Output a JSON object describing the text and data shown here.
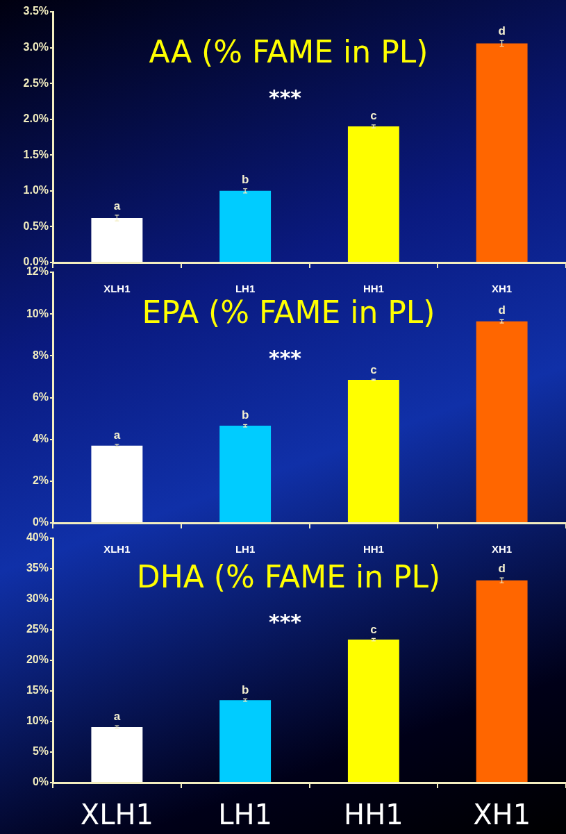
{
  "chart_data": [
    {
      "type": "bar",
      "title": "AA (% FAME in PL)",
      "categories": [
        "XLH1",
        "LH1",
        "HH1",
        "XH1"
      ],
      "values": [
        0.62,
        1.0,
        1.9,
        3.06
      ],
      "errors": [
        0.04,
        0.03,
        0.02,
        0.04
      ],
      "colors": [
        "#ffffff",
        "#00ccff",
        "#ffff00",
        "#ff6600"
      ],
      "ylim": [
        0,
        3.5
      ],
      "yticks": [
        {
          "value": 0,
          "label": "0.0%"
        },
        {
          "value": 0.5,
          "label": "0.5%"
        },
        {
          "value": 1,
          "label": "1.0%"
        },
        {
          "value": 1.5,
          "label": "1.5%"
        },
        {
          "value": 2,
          "label": "2.0%"
        },
        {
          "value": 2.5,
          "label": "2.5%"
        },
        {
          "value": 3,
          "label": "3.0%"
        },
        {
          "value": 3.5,
          "label": "3.5%"
        }
      ],
      "annotations": [
        {
          "text": "a",
          "x": "XLH1",
          "y": 0.62
        },
        {
          "text": "b",
          "x": "LH1",
          "y": 1.0
        },
        {
          "text": "c",
          "x": "HH1",
          "y": 1.9
        },
        {
          "text": "d",
          "x": "XH1",
          "y": 3.06
        },
        "***"
      ]
    },
    {
      "type": "bar",
      "title": "EPA (% FAME in PL)",
      "categories": [
        "XLH1",
        "LH1",
        "HH1",
        "XH1"
      ],
      "values": [
        3.7,
        4.65,
        6.85,
        9.65
      ],
      "errors": [
        0.06,
        0.06,
        0.03,
        0.08
      ],
      "colors": [
        "#ffffff",
        "#00ccff",
        "#ffff00",
        "#ff6600"
      ],
      "ylim": [
        0,
        12
      ],
      "yticks": [
        {
          "value": 0,
          "label": "0%"
        },
        {
          "value": 2,
          "label": "2%"
        },
        {
          "value": 4,
          "label": "4%"
        },
        {
          "value": 6,
          "label": "6%"
        },
        {
          "value": 8,
          "label": "8%"
        },
        {
          "value": 10,
          "label": "10%"
        },
        {
          "value": 12,
          "label": "12%"
        }
      ],
      "annotations": [
        {
          "text": "a",
          "x": "XLH1",
          "y": 3.7
        },
        {
          "text": "b",
          "x": "LH1",
          "y": 4.65
        },
        {
          "text": "c",
          "x": "HH1",
          "y": 6.85
        },
        {
          "text": "d",
          "x": "XH1",
          "y": 9.65
        },
        "***"
      ]
    },
    {
      "type": "bar",
      "title": "DHA (% FAME in PL)",
      "categories": [
        "XLH1",
        "LH1",
        "HH1",
        "XH1"
      ],
      "values": [
        9.1,
        13.5,
        23.4,
        33.1
      ],
      "errors": [
        0.2,
        0.2,
        0.2,
        0.4
      ],
      "colors": [
        "#ffffff",
        "#00ccff",
        "#ffff00",
        "#ff6600"
      ],
      "ylim": [
        0,
        40
      ],
      "yticks": [
        {
          "value": 0,
          "label": "0%"
        },
        {
          "value": 5,
          "label": "5%"
        },
        {
          "value": 10,
          "label": "10%"
        },
        {
          "value": 15,
          "label": "15%"
        },
        {
          "value": 20,
          "label": "20%"
        },
        {
          "value": 25,
          "label": "25%"
        },
        {
          "value": 30,
          "label": "30%"
        },
        {
          "value": 35,
          "label": "35%"
        },
        {
          "value": 40,
          "label": "40%"
        }
      ],
      "annotations": [
        {
          "text": "a",
          "x": "XLH1",
          "y": 9.1
        },
        {
          "text": "b",
          "x": "LH1",
          "y": 13.5
        },
        {
          "text": "c",
          "x": "HH1",
          "y": 23.4
        },
        {
          "text": "d",
          "x": "XH1",
          "y": 33.1
        },
        "***"
      ]
    }
  ]
}
